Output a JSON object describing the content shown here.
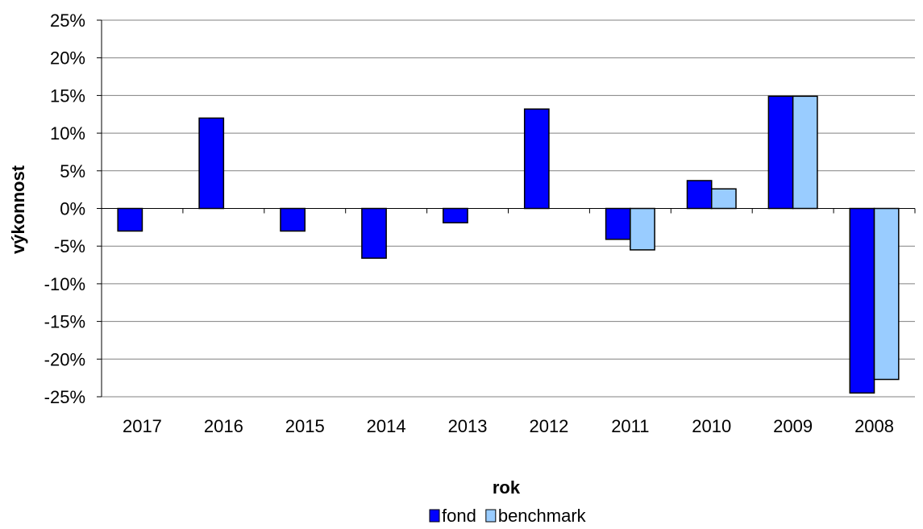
{
  "chart_data": {
    "type": "bar",
    "title": "",
    "xlabel": "rok",
    "ylabel": "výkonnost",
    "categories": [
      "2017",
      "2016",
      "2015",
      "2014",
      "2013",
      "2012",
      "2011",
      "2010",
      "2009",
      "2008"
    ],
    "series": [
      {
        "name": "fond",
        "values": [
          -3.0,
          12.0,
          -3.0,
          -6.6,
          -1.9,
          13.2,
          -4.1,
          3.7,
          14.9,
          -24.5
        ],
        "color": "#0000ff"
      },
      {
        "name": "benchmark",
        "values": [
          null,
          null,
          null,
          null,
          null,
          null,
          -5.5,
          2.6,
          14.9,
          -22.7
        ],
        "color": "#99ccff"
      }
    ],
    "ylim": [
      -25,
      25
    ],
    "yticks": [
      25,
      20,
      15,
      10,
      5,
      0,
      -5,
      -10,
      -15,
      -20,
      -25
    ],
    "ytick_labels": [
      "25%",
      "20%",
      "15%",
      "10%",
      "5%",
      "0%",
      "-5%",
      "-10%",
      "-15%",
      "-20%",
      "-25%"
    ],
    "grid": true,
    "legend_position": "bottom-center"
  }
}
